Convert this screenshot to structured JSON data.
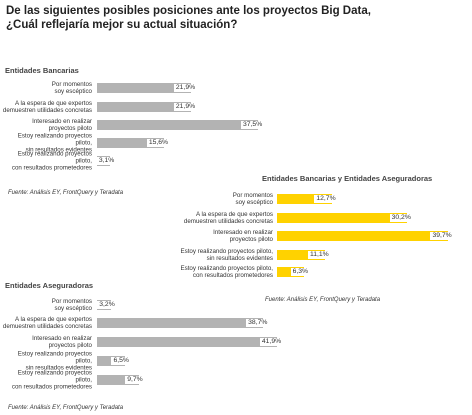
{
  "title": "De las siguientes posibles posiciones ante los proyectos Big Data,\n¿Cuál reflejaría mejor su actual situación?",
  "chart_data": [
    {
      "type": "bar",
      "orientation": "horizontal",
      "title": "Entidades Bancarias",
      "categories": [
        "Por momentos\nsoy escéptico",
        "A la espera de que expertos\ndemuestren utilidades concretas",
        "Interesado en realizar\nproyectos piloto",
        "Estoy realizando proyectos piloto,\nsin resultados evidentes",
        "Estoy realizando proyectos piloto,\ncon resultados prometedores"
      ],
      "values": [
        21.9,
        21.9,
        37.5,
        15.6,
        3.1
      ],
      "value_labels": [
        "21,9%",
        "21,9%",
        "37,5%",
        "15,6%",
        "3,1%"
      ],
      "color": "#b3b3b3",
      "source": "Fuente: Análisis EY, FrontQuery y Teradata"
    },
    {
      "type": "bar",
      "orientation": "horizontal",
      "title": "Entidades Bancarias y Entidades Aseguradoras",
      "categories": [
        "Por momentos\nsoy escéptico",
        "A la espera de que expertos\ndemuestren utilidades concretas",
        "Interesado en realizar\nproyectos piloto",
        "Estoy realizando proyectos piloto,\nsin resultados evidentes",
        "Estoy realizando proyectos piloto,\ncon resultados prometedores"
      ],
      "values": [
        12.7,
        30.2,
        39.7,
        11.1,
        6.3
      ],
      "value_labels": [
        "12,7%",
        "30,2%",
        "39,7%",
        "11,1%",
        "6,3%"
      ],
      "color": "#ffd200",
      "source": "Fuente: Análisis EY, FrontQuery y Teradata"
    },
    {
      "type": "bar",
      "orientation": "horizontal",
      "title": "Entidades Aseguradoras",
      "categories": [
        "Por momentos\nsoy escéptico",
        "A la espera de que expertos\ndemuestren utilidades concretas",
        "Interesado en realizar\nproyectos piloto",
        "Estoy realizando proyectos piloto,\nsin resultados evidentes",
        "Estoy realizando proyectos piloto,\ncon resultados prometedores"
      ],
      "values": [
        3.2,
        38.7,
        41.9,
        6.5,
        9.7
      ],
      "value_labels": [
        "3,2%",
        "38,7%",
        "41,9%",
        "6,5%",
        "9,7%"
      ],
      "color": "#b3b3b3",
      "source": "Fuente: Análisis EY, FrontQuery y Teradata"
    }
  ]
}
